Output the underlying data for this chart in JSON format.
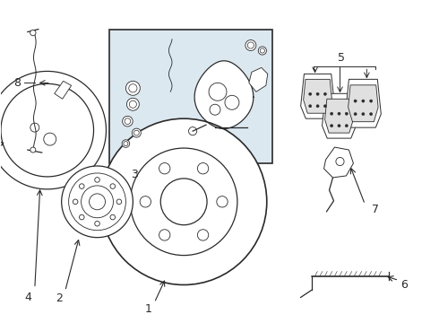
{
  "bg_color": "#ffffff",
  "line_color": "#2a2a2a",
  "box_bg": "#dce8f0",
  "fig_w": 4.9,
  "fig_h": 3.6,
  "dpi": 100,
  "label_fontsize": 9
}
